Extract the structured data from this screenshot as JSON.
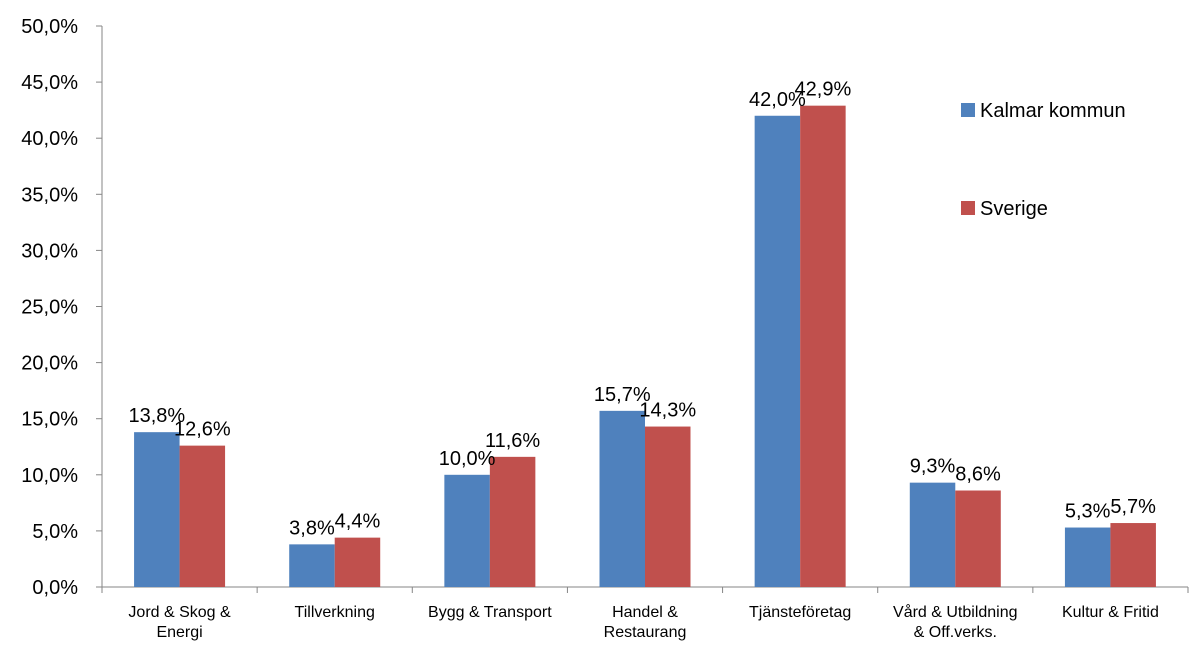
{
  "chart_data": {
    "type": "bar",
    "categories": [
      "Jord & Skog & Energi",
      "Tillverkning",
      "Bygg & Transport",
      "Handel & Restaurang",
      "Tjänsteföretag",
      "Vård & Utbildning & Off.verks.",
      "Kultur & Fritid"
    ],
    "category_lines": [
      [
        "Jord & Skog &",
        "Energi"
      ],
      [
        "Tillverkning"
      ],
      [
        "Bygg & Transport"
      ],
      [
        "Handel &",
        "Restaurang"
      ],
      [
        "Tjänsteföretag"
      ],
      [
        "Vård & Utbildning",
        "& Off.verks."
      ],
      [
        "Kultur & Fritid"
      ]
    ],
    "series": [
      {
        "name": "Kalmar kommun",
        "color": "#4F81BD",
        "values": [
          13.8,
          3.8,
          10.0,
          15.7,
          42.0,
          9.3,
          5.3
        ],
        "labels": [
          "13,8%",
          "3,8%",
          "10,0%",
          "15,7%",
          "42,0%",
          "9,3%",
          "5,3%"
        ]
      },
      {
        "name": "Sverige",
        "color": "#C0504D",
        "values": [
          12.6,
          4.4,
          11.6,
          14.3,
          42.9,
          8.6,
          5.7
        ],
        "labels": [
          "12,6%",
          "4,4%",
          "11,6%",
          "14,3%",
          "42,9%",
          "8,6%",
          "5,7%"
        ]
      }
    ],
    "ylim": [
      0,
      50
    ],
    "y_ticks": [
      "0,0%",
      "5,0%",
      "10,0%",
      "15,0%",
      "20,0%",
      "25,0%",
      "30,0%",
      "35,0%",
      "40,0%",
      "45,0%",
      "50,0%"
    ],
    "title": "",
    "xlabel": "",
    "ylabel": "",
    "grid": false,
    "legend_position": "right"
  }
}
